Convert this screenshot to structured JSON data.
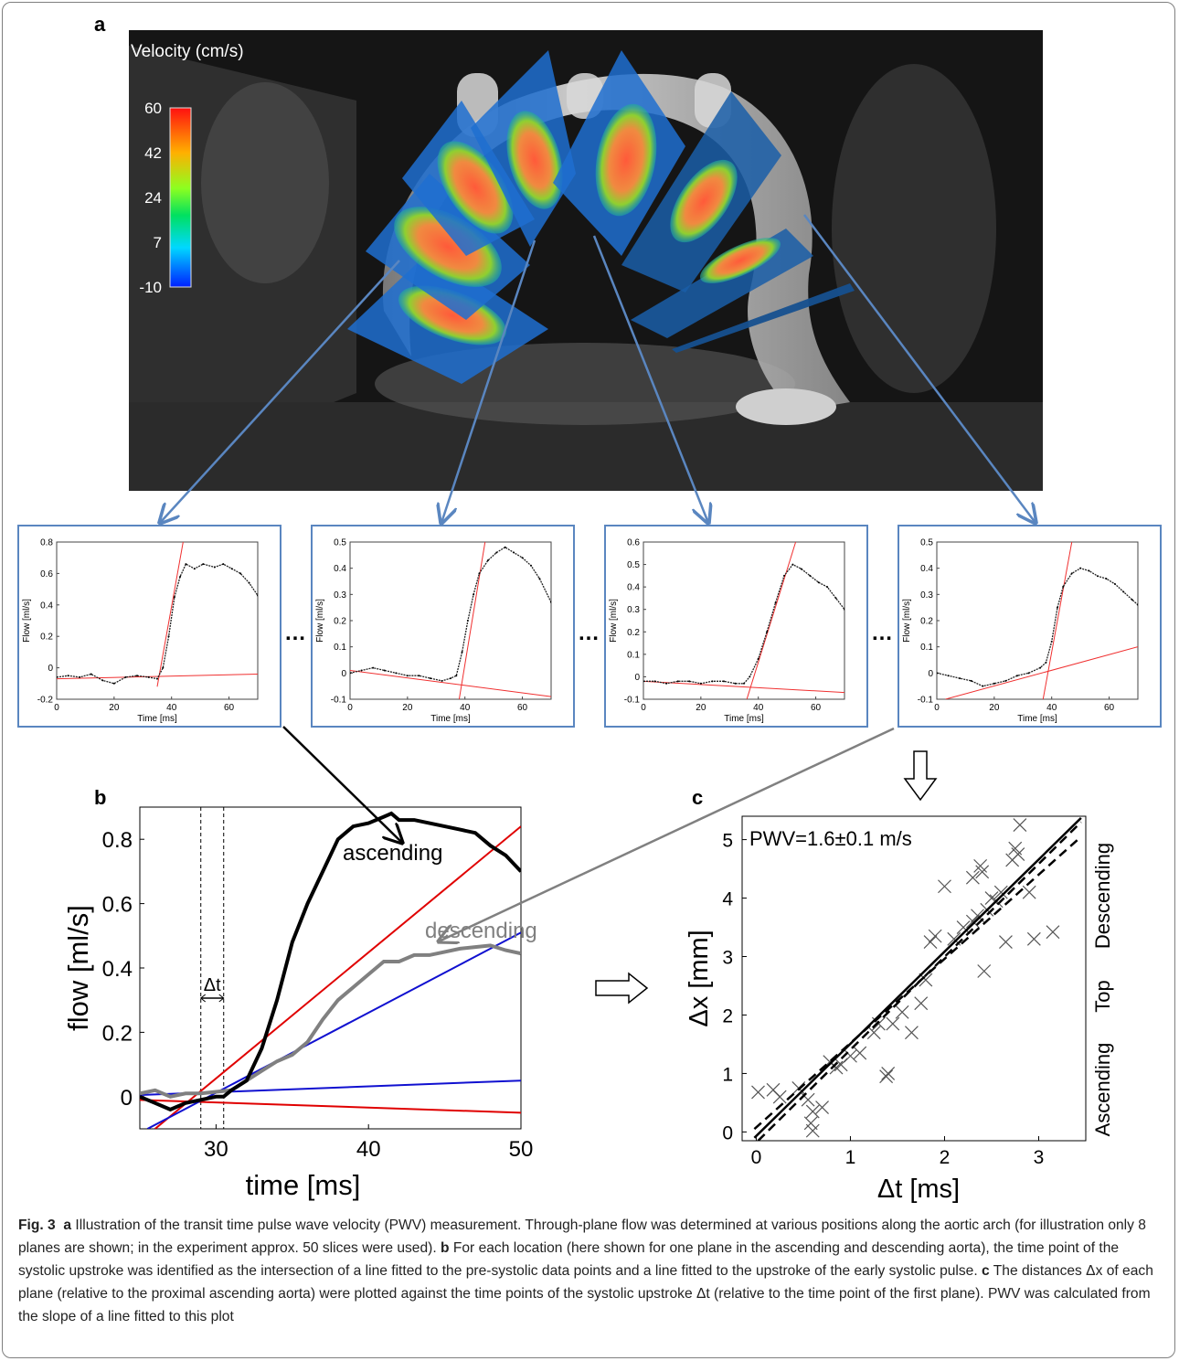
{
  "panel_a": {
    "label": "a",
    "colorbar_title": "Velocity (cm/s)",
    "colorbar_ticks": [
      "60",
      "42",
      "24",
      "7",
      "-10"
    ]
  },
  "small_plots": {
    "separator": "…",
    "plots": [
      {
        "ylabel": "Flow [ml/s]",
        "xlabel": "Time [ms]",
        "xlim": [
          0,
          70
        ],
        "ylim": [
          -0.2,
          0.8
        ],
        "xticks": [
          "0",
          "20",
          "40",
          "60"
        ],
        "yticks": [
          "-0.2",
          "0",
          "0.2",
          "0.4",
          "0.6",
          "0.8"
        ],
        "yticks_shown": [
          "-0.2",
          "0",
          "0.2",
          "0.4",
          "0.6",
          "0.8"
        ],
        "curve": [
          [
            0,
            -0.06
          ],
          [
            4,
            -0.05
          ],
          [
            8,
            -0.06
          ],
          [
            12,
            -0.04
          ],
          [
            16,
            -0.08
          ],
          [
            20,
            -0.1
          ],
          [
            24,
            -0.06
          ],
          [
            28,
            -0.05
          ],
          [
            32,
            -0.06
          ],
          [
            35,
            -0.07
          ],
          [
            37,
            0.0
          ],
          [
            39,
            0.2
          ],
          [
            41,
            0.45
          ],
          [
            43,
            0.58
          ],
          [
            45,
            0.66
          ],
          [
            48,
            0.63
          ],
          [
            51,
            0.66
          ],
          [
            55,
            0.64
          ],
          [
            58,
            0.66
          ],
          [
            61,
            0.63
          ],
          [
            64,
            0.6
          ],
          [
            67,
            0.54
          ],
          [
            70,
            0.46
          ]
        ],
        "fit_lines": [
          [
            [
              0,
              -0.07
            ],
            [
              70,
              -0.04
            ]
          ],
          [
            [
              35,
              -0.12
            ],
            [
              45,
              0.9
            ]
          ]
        ]
      },
      {
        "ylabel": "Flow [ml/s]",
        "xlabel": "Time [ms]",
        "xlim": [
          0,
          70
        ],
        "ylim": [
          -0.1,
          0.5
        ],
        "xticks": [
          "0",
          "20",
          "40",
          "60"
        ],
        "yticks": [
          "-0.1",
          "0",
          "0.1",
          "0.2",
          "0.3",
          "0.4",
          "0.5"
        ],
        "yticks_shown": [
          "-0.1",
          "0",
          "0.1",
          "0.2",
          "0.3",
          "0.4",
          "0.5"
        ],
        "curve": [
          [
            0,
            0.0
          ],
          [
            4,
            0.01
          ],
          [
            8,
            0.02
          ],
          [
            12,
            0.01
          ],
          [
            16,
            0.0
          ],
          [
            20,
            -0.01
          ],
          [
            24,
            -0.01
          ],
          [
            28,
            -0.02
          ],
          [
            32,
            -0.03
          ],
          [
            35,
            -0.02
          ],
          [
            37,
            -0.01
          ],
          [
            39,
            0.08
          ],
          [
            41,
            0.2
          ],
          [
            43,
            0.3
          ],
          [
            45,
            0.38
          ],
          [
            48,
            0.43
          ],
          [
            51,
            0.46
          ],
          [
            54,
            0.48
          ],
          [
            57,
            0.46
          ],
          [
            60,
            0.44
          ],
          [
            63,
            0.41
          ],
          [
            66,
            0.36
          ],
          [
            70,
            0.27
          ]
        ],
        "fit_lines": [
          [
            [
              0,
              0.01
            ],
            [
              70,
              -0.09
            ]
          ],
          [
            [
              38,
              -0.1
            ],
            [
              47,
              0.5
            ]
          ]
        ]
      },
      {
        "ylabel": "Flow [ml/s]",
        "xlabel": "Time [ms]",
        "xlim": [
          0,
          70
        ],
        "ylim": [
          -0.1,
          0.6
        ],
        "xticks": [
          "0",
          "20",
          "40",
          "60"
        ],
        "yticks": [
          "-0.1",
          "0",
          "0.1",
          "0.2",
          "0.3",
          "0.4",
          "0.5",
          "0.6"
        ],
        "yticks_shown": [
          "-0.1",
          "0",
          "0.1",
          "0.2",
          "0.3",
          "0.4",
          "0.5",
          "0.6"
        ],
        "curve": [
          [
            0,
            -0.02
          ],
          [
            4,
            -0.02
          ],
          [
            8,
            -0.03
          ],
          [
            12,
            -0.02
          ],
          [
            16,
            -0.02
          ],
          [
            20,
            -0.03
          ],
          [
            24,
            -0.02
          ],
          [
            28,
            -0.02
          ],
          [
            32,
            -0.03
          ],
          [
            35,
            -0.03
          ],
          [
            37,
            0.0
          ],
          [
            40,
            0.08
          ],
          [
            43,
            0.2
          ],
          [
            46,
            0.33
          ],
          [
            49,
            0.45
          ],
          [
            52,
            0.5
          ],
          [
            55,
            0.48
          ],
          [
            58,
            0.45
          ],
          [
            61,
            0.42
          ],
          [
            64,
            0.4
          ],
          [
            67,
            0.35
          ],
          [
            70,
            0.3
          ]
        ],
        "fit_lines": [
          [
            [
              0,
              -0.02
            ],
            [
              70,
              -0.07
            ]
          ],
          [
            [
              36,
              -0.1
            ],
            [
              53,
              0.6
            ]
          ]
        ]
      },
      {
        "ylabel": "Flow [ml/s]",
        "xlabel": "Time [ms]",
        "xlim": [
          0,
          70
        ],
        "ylim": [
          -0.1,
          0.5
        ],
        "xticks": [
          "0",
          "20",
          "40",
          "60"
        ],
        "yticks": [
          "-0.1",
          "0",
          "0.1",
          "0.2",
          "0.3",
          "0.4",
          "0.5"
        ],
        "yticks_shown": [
          "-0.1",
          "0",
          "0.1",
          "0.2",
          "0.3",
          "0.4",
          "0.5"
        ],
        "curve": [
          [
            0,
            0.0
          ],
          [
            4,
            -0.01
          ],
          [
            8,
            -0.02
          ],
          [
            12,
            -0.03
          ],
          [
            16,
            -0.05
          ],
          [
            20,
            -0.04
          ],
          [
            24,
            -0.03
          ],
          [
            28,
            -0.01
          ],
          [
            32,
            0.0
          ],
          [
            36,
            0.02
          ],
          [
            38,
            0.04
          ],
          [
            40,
            0.12
          ],
          [
            42,
            0.25
          ],
          [
            44,
            0.33
          ],
          [
            47,
            0.38
          ],
          [
            50,
            0.4
          ],
          [
            53,
            0.39
          ],
          [
            56,
            0.37
          ],
          [
            59,
            0.36
          ],
          [
            62,
            0.34
          ],
          [
            65,
            0.31
          ],
          [
            68,
            0.28
          ],
          [
            70,
            0.26
          ]
        ],
        "fit_lines": [
          [
            [
              3,
              -0.1
            ],
            [
              70,
              0.1
            ]
          ],
          [
            [
              37,
              -0.1
            ],
            [
              47,
              0.5
            ]
          ]
        ]
      }
    ]
  },
  "panel_b": {
    "label": "b",
    "delta_label": "Δt",
    "ascending_label": "ascending",
    "descending_label": "descending"
  },
  "panel_c": {
    "label": "c",
    "pwv_label": "PWV=1.6±0.1 m/s",
    "side_labels": [
      "Ascending",
      "Top",
      "Descending"
    ]
  },
  "chart_data": [
    {
      "type": "line",
      "title": "",
      "xlabel": "time [ms]",
      "ylabel": "flow [ml/s]",
      "xlim": [
        25,
        50
      ],
      "ylim": [
        -0.1,
        0.9
      ],
      "xticks": [
        "30",
        "40",
        "50"
      ],
      "yticks": [
        "0",
        "0.2",
        "0.4",
        "0.6",
        "0.8"
      ],
      "grid": false,
      "series": [
        {
          "name": "ascending",
          "color": "#000000",
          "points": [
            [
              25,
              0.0
            ],
            [
              26,
              -0.02
            ],
            [
              27,
              -0.04
            ],
            [
              28,
              -0.02
            ],
            [
              29,
              -0.01
            ],
            [
              30,
              0.0
            ],
            [
              30.5,
              0.0
            ],
            [
              31,
              0.02
            ],
            [
              32,
              0.05
            ],
            [
              33,
              0.15
            ],
            [
              34,
              0.3
            ],
            [
              35,
              0.48
            ],
            [
              36,
              0.6
            ],
            [
              37,
              0.7
            ],
            [
              38,
              0.8
            ],
            [
              39,
              0.84
            ],
            [
              40,
              0.85
            ],
            [
              41,
              0.87
            ],
            [
              41.5,
              0.88
            ],
            [
              42,
              0.86
            ],
            [
              43,
              0.86
            ],
            [
              44,
              0.85
            ],
            [
              45,
              0.84
            ],
            [
              46,
              0.83
            ],
            [
              47,
              0.82
            ],
            [
              48,
              0.78
            ],
            [
              49,
              0.75
            ],
            [
              50,
              0.7
            ]
          ]
        },
        {
          "name": "descending",
          "color": "#808080",
          "points": [
            [
              25,
              0.01
            ],
            [
              26,
              0.02
            ],
            [
              27,
              0.0
            ],
            [
              28,
              0.01
            ],
            [
              29,
              0.01
            ],
            [
              30,
              0.015
            ],
            [
              31,
              0.02
            ],
            [
              32,
              0.05
            ],
            [
              33,
              0.08
            ],
            [
              34,
              0.11
            ],
            [
              35,
              0.13
            ],
            [
              36,
              0.17
            ],
            [
              37,
              0.24
            ],
            [
              38,
              0.3
            ],
            [
              39,
              0.34
            ],
            [
              40,
              0.38
            ],
            [
              41,
              0.42
            ],
            [
              42,
              0.42
            ],
            [
              43,
              0.44
            ],
            [
              44,
              0.44
            ],
            [
              45,
              0.45
            ],
            [
              46,
              0.46
            ],
            [
              47,
              0.465
            ],
            [
              48,
              0.47
            ],
            [
              49,
              0.455
            ],
            [
              50,
              0.445
            ]
          ]
        }
      ],
      "fit_lines": [
        {
          "color": "#e00000",
          "points": [
            [
              26,
              -0.1
            ],
            [
              50,
              0.84
            ]
          ]
        },
        {
          "color": "#e00000",
          "points": [
            [
              25,
              -0.01
            ],
            [
              50,
              -0.05
            ]
          ]
        },
        {
          "color": "#1010d0",
          "points": [
            [
              25.5,
              -0.1
            ],
            [
              50,
              0.51
            ]
          ]
        },
        {
          "color": "#1010d0",
          "points": [
            [
              25,
              0.005
            ],
            [
              50,
              0.05
            ]
          ]
        }
      ],
      "vlines": [
        29,
        30.5
      ]
    },
    {
      "type": "scatter",
      "title": "",
      "xlabel": "Δt [ms]",
      "ylabel": "Δx [mm]",
      "xlim": [
        -0.15,
        3.5
      ],
      "ylim": [
        -0.15,
        5.4
      ],
      "xticks": [
        "0",
        "1",
        "2",
        "3"
      ],
      "yticks": [
        "0",
        "1",
        "2",
        "3",
        "4",
        "5"
      ],
      "grid": false,
      "points": [
        [
          0.02,
          0.68
        ],
        [
          0.18,
          0.72
        ],
        [
          0.25,
          0.6
        ],
        [
          0.45,
          0.75
        ],
        [
          0.55,
          0.55
        ],
        [
          0.6,
          0.35
        ],
        [
          0.58,
          0.15
        ],
        [
          0.6,
          0.02
        ],
        [
          0.7,
          0.42
        ],
        [
          0.78,
          1.2
        ],
        [
          0.85,
          1.1
        ],
        [
          0.9,
          1.15
        ],
        [
          1.0,
          1.3
        ],
        [
          1.1,
          1.35
        ],
        [
          1.25,
          1.7
        ],
        [
          1.3,
          1.85
        ],
        [
          1.38,
          0.95
        ],
        [
          1.4,
          1.0
        ],
        [
          1.45,
          1.85
        ],
        [
          1.55,
          2.05
        ],
        [
          1.65,
          1.7
        ],
        [
          1.75,
          2.2
        ],
        [
          1.8,
          2.6
        ],
        [
          1.85,
          3.25
        ],
        [
          1.9,
          3.35
        ],
        [
          2.0,
          4.2
        ],
        [
          2.1,
          3.3
        ],
        [
          2.2,
          3.5
        ],
        [
          2.3,
          3.6
        ],
        [
          2.35,
          3.7
        ],
        [
          2.38,
          4.55
        ],
        [
          2.4,
          4.45
        ],
        [
          2.42,
          2.75
        ],
        [
          2.45,
          3.8
        ],
        [
          2.5,
          4.0
        ],
        [
          2.55,
          3.95
        ],
        [
          2.6,
          4.1
        ],
        [
          2.65,
          3.25
        ],
        [
          2.72,
          4.65
        ],
        [
          2.75,
          4.85
        ],
        [
          2.78,
          4.75
        ],
        [
          2.8,
          5.25
        ],
        [
          2.9,
          4.1
        ],
        [
          2.95,
          3.3
        ],
        [
          3.15,
          3.42
        ],
        [
          2.3,
          4.35
        ]
      ],
      "fit_line": [
        [
          -0.02,
          -0.1
        ],
        [
          3.45,
          5.37
        ]
      ],
      "ci_lines": [
        [
          [
            0.02,
            -0.15
          ],
          [
            3.45,
            5.3
          ]
        ],
        [
          [
            -0.02,
            0.05
          ],
          [
            3.45,
            5.05
          ]
        ]
      ],
      "fit_line_note": "solid line with dashed confidence bounds"
    }
  ],
  "caption": {
    "fig_label": "Fig. 3",
    "a_label": "a",
    "a_text": " Illustration of the transit time pulse wave velocity (PWV) measurement. Through-plane flow was determined at various positions along the aortic arch (for illustration only 8 planes are shown; in the experiment approx. 50 slices were used). ",
    "b_label": "b",
    "b_text": " For each location (here shown for one plane in the ascending and descending aorta), the time point of the systolic upstroke was identified as the intersection of a line fitted to the pre-systolic data points and a line fitted to the upstroke of the early systolic pulse. ",
    "c_label": "c",
    "c_text": " The distances Δx of each plane (relative to the proximal ascending aorta) were plotted against the time points of the systolic upstroke Δt (relative to the time point of the first plane). PWV was calculated from the slope of a line fitted to this plot"
  }
}
